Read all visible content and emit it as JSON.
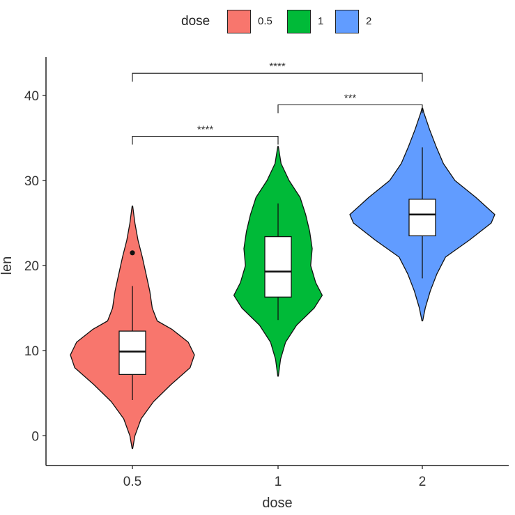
{
  "legend": {
    "title": "dose",
    "items": [
      {
        "label": "0.5",
        "color": "#F8766D"
      },
      {
        "label": "1",
        "color": "#00BA38"
      },
      {
        "label": "2",
        "color": "#619CFF"
      }
    ]
  },
  "chart_data": {
    "type": "violin",
    "xlabel": "dose",
    "ylabel": "len",
    "categories": [
      "0.5",
      "1",
      "2"
    ],
    "colors": [
      "#F8766D",
      "#00BA38",
      "#619CFF"
    ],
    "ylim": [
      -3.5,
      44.5
    ],
    "yticks": [
      0,
      10,
      20,
      30,
      40
    ],
    "grid": false,
    "legend_position": "top",
    "box": [
      {
        "q1": 7.2,
        "median": 9.9,
        "q3": 12.3,
        "whisker_low": 4.2,
        "whisker_high": 17.6,
        "outliers": [
          21.5
        ]
      },
      {
        "q1": 16.3,
        "median": 19.3,
        "q3": 23.4,
        "whisker_low": 13.6,
        "whisker_high": 27.3
      },
      {
        "q1": 23.5,
        "median": 26.0,
        "q3": 27.8,
        "whisker_low": 18.5,
        "whisker_high": 33.9
      }
    ],
    "violin": [
      {
        "min": -1.5,
        "max": 27.0,
        "density": [
          [
            -1.5,
            0.005
          ],
          [
            0,
            0.04
          ],
          [
            2,
            0.14
          ],
          [
            4,
            0.34
          ],
          [
            6,
            0.62
          ],
          [
            8,
            0.93
          ],
          [
            9.5,
            1.0
          ],
          [
            11,
            0.9
          ],
          [
            12.5,
            0.64
          ],
          [
            13.5,
            0.4
          ],
          [
            15,
            0.32
          ],
          [
            17,
            0.28
          ],
          [
            19,
            0.22
          ],
          [
            21,
            0.16
          ],
          [
            23,
            0.09
          ],
          [
            25,
            0.04
          ],
          [
            27,
            0.005
          ]
        ]
      },
      {
        "min": 7.0,
        "max": 34.0,
        "density": [
          [
            7,
            0.005
          ],
          [
            9,
            0.05
          ],
          [
            11,
            0.15
          ],
          [
            13,
            0.37
          ],
          [
            15,
            0.72
          ],
          [
            16.5,
            0.88
          ],
          [
            18,
            0.75
          ],
          [
            20,
            0.65
          ],
          [
            22,
            0.68
          ],
          [
            24,
            0.63
          ],
          [
            26,
            0.55
          ],
          [
            28,
            0.44
          ],
          [
            30,
            0.22
          ],
          [
            32,
            0.06
          ],
          [
            34,
            0.005
          ]
        ]
      },
      {
        "min": 13.5,
        "max": 38.5,
        "density": [
          [
            13.5,
            0.005
          ],
          [
            15,
            0.04
          ],
          [
            17,
            0.11
          ],
          [
            19,
            0.2
          ],
          [
            21,
            0.32
          ],
          [
            23,
            0.65
          ],
          [
            25,
            0.95
          ],
          [
            26,
            1.0
          ],
          [
            28,
            0.74
          ],
          [
            30,
            0.45
          ],
          [
            32,
            0.29
          ],
          [
            34,
            0.19
          ],
          [
            36,
            0.1
          ],
          [
            38,
            0.02
          ],
          [
            38.5,
            0.005
          ]
        ]
      }
    ],
    "brackets": [
      {
        "from": 0,
        "to": 1,
        "y": 35.2,
        "label": "****"
      },
      {
        "from": 1,
        "to": 2,
        "y": 38.9,
        "label": "***"
      },
      {
        "from": 0,
        "to": 2,
        "y": 42.6,
        "label": "****"
      }
    ]
  }
}
